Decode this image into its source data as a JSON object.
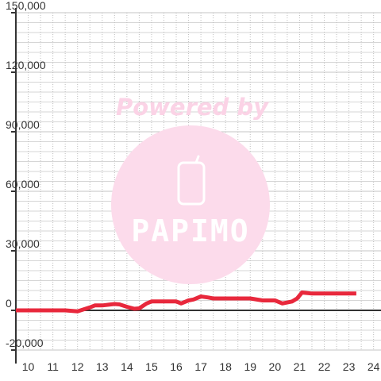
{
  "chart_data": {
    "type": "line",
    "title": "",
    "xlabel": "",
    "ylabel": "",
    "xlim": [
      9.5,
      24.3
    ],
    "ylim": [
      -20000,
      150000
    ],
    "x_ticks": [
      10,
      11,
      12,
      13,
      14,
      15,
      16,
      17,
      18,
      19,
      20,
      21,
      22,
      23,
      24
    ],
    "y_ticks": [
      -20000,
      0,
      30000,
      60000,
      90000,
      120000,
      150000
    ],
    "y_tick_labels": [
      "-20,000",
      "0",
      "30,000",
      "60,000",
      "90,000",
      "120,000",
      "150,000"
    ],
    "grid": true,
    "series": [
      {
        "color": "#e8283c",
        "x": [
          9.5,
          10.5,
          11.5,
          12.0,
          12.5,
          12.7,
          13.0,
          13.5,
          13.7,
          14.0,
          14.3,
          14.5,
          14.8,
          15.0,
          15.5,
          16.0,
          16.2,
          16.5,
          16.7,
          17.0,
          17.3,
          17.5,
          18.0,
          18.5,
          19.0,
          19.5,
          20.0,
          20.3,
          20.7,
          20.9,
          21.1,
          21.5,
          22.0,
          22.5,
          23.0,
          23.3
        ],
        "y": [
          0,
          0,
          0,
          -500,
          1500,
          2500,
          2500,
          3200,
          3000,
          1800,
          800,
          1000,
          3500,
          4500,
          4500,
          4500,
          3500,
          5000,
          5500,
          7000,
          6500,
          6000,
          6000,
          6000,
          6000,
          5000,
          5000,
          3500,
          4500,
          6000,
          9000,
          8500,
          8500,
          8500,
          8500,
          8500
        ]
      }
    ]
  },
  "watermark": {
    "line1": "Powered by",
    "brand": "PAPIMO",
    "text_color": "#fbd3e6",
    "circle_color": "#fcdbeb",
    "glyph_color": "#ffffff"
  }
}
